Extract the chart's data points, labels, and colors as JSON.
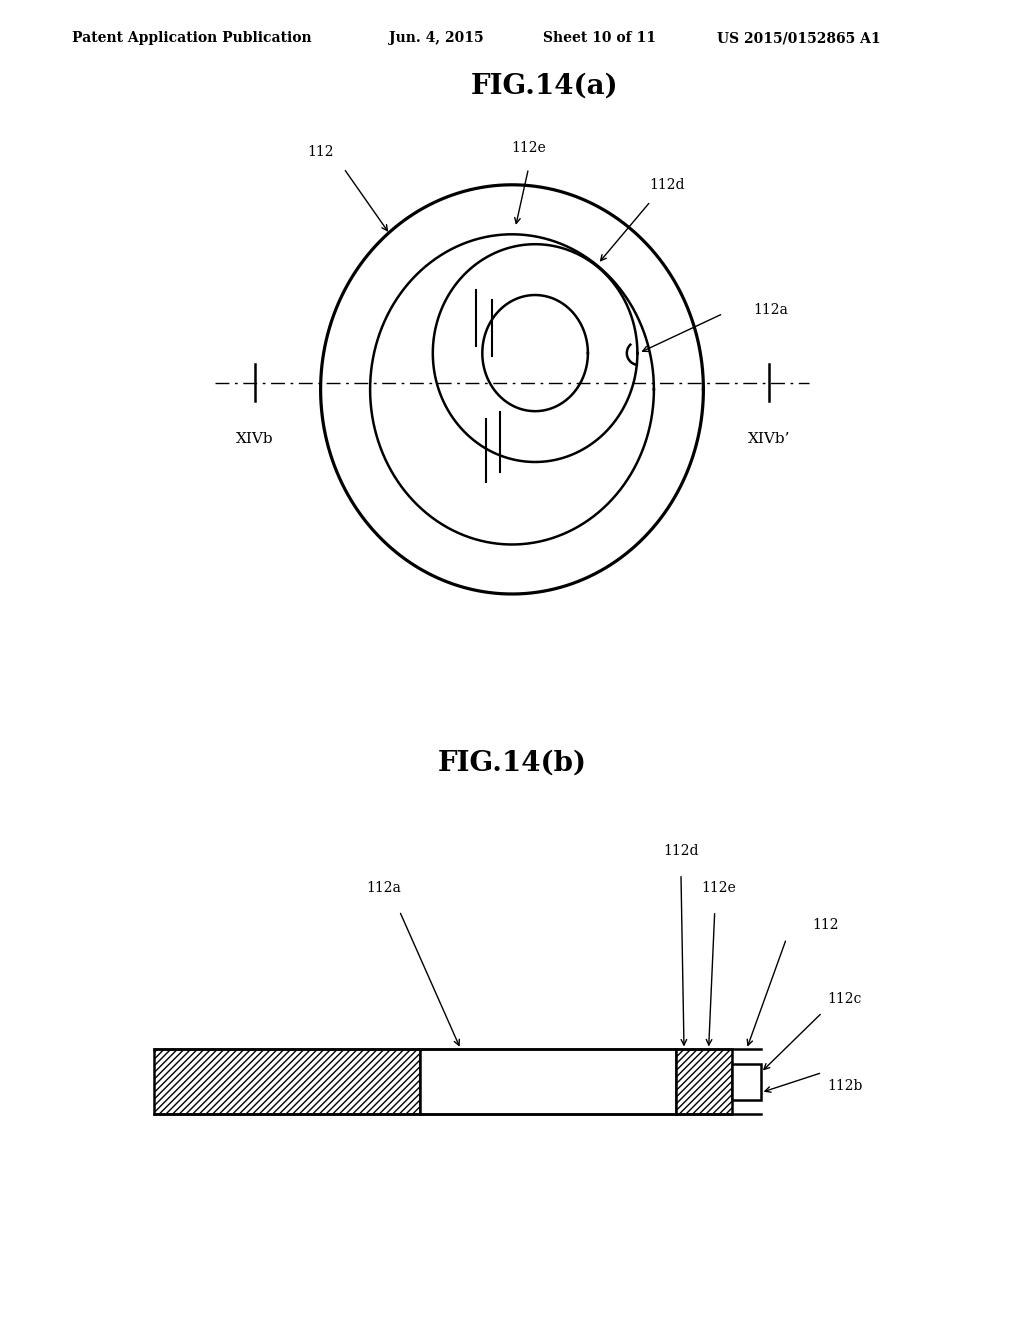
{
  "bg_color": "#ffffff",
  "header_text1": "Patent Application Publication",
  "header_text2": "Jun. 4, 2015",
  "header_text3": "Sheet 10 of 11",
  "header_text4": "US 2015/0152865 A1",
  "fig_a_title": "FIG.14(a)",
  "fig_b_title": "FIG.14(b)",
  "line_color": "#000000",
  "line_width": 1.8,
  "label_fontsize": 10,
  "title_fontsize": 20,
  "header_fontsize": 10
}
